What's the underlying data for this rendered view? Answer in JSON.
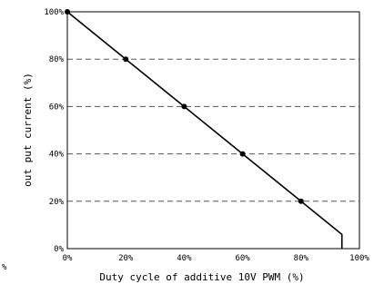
{
  "chart_data": {
    "type": "line",
    "title": "",
    "xlabel": "Duty cycle of additive 10V PWM (%)",
    "ylabel": "out put current (%)",
    "xlim": [
      0,
      100
    ],
    "ylim": [
      0,
      100
    ],
    "x_ticks": [
      "0%",
      "20%",
      "40%",
      "60%",
      "80%",
      "100%"
    ],
    "y_ticks": [
      "0%",
      "20%",
      "40%",
      "60%",
      "80%",
      "100%"
    ],
    "grid": "horizontal dashed",
    "legend": "none",
    "series": [
      {
        "x": [
          0,
          20,
          40,
          60,
          80,
          94,
          94
        ],
        "y": [
          100,
          80,
          60,
          40,
          20,
          6,
          0
        ],
        "markers": [
          true,
          true,
          true,
          true,
          true,
          false,
          false
        ]
      }
    ],
    "stray_label": "%",
    "colors": {
      "line": "#000000",
      "grid": "#555555",
      "axis": "#000000"
    }
  }
}
